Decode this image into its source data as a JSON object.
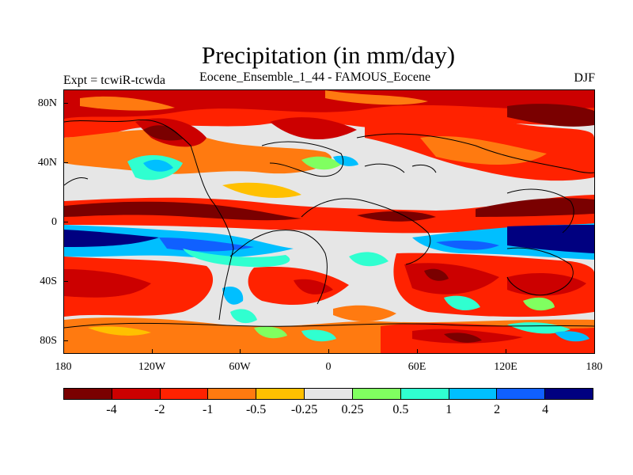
{
  "title": "Precipitation (in mm/day)",
  "subtitle": "Eocene_Ensemble_1_44 - FAMOUS_Eocene",
  "experiment": "Expt = tcwiR-tcwda",
  "season": "DJF",
  "y_tick_labels": [
    "80N",
    "40N",
    "0",
    "40S",
    "80S"
  ],
  "x_tick_labels": [
    "180",
    "120W",
    "60W",
    "0",
    "60E",
    "120E",
    "180"
  ],
  "colorbar": {
    "colors": [
      "#7a0000",
      "#cc0000",
      "#ff2200",
      "#ff7a10",
      "#ffc000",
      "#e6e6e6",
      "#80ff60",
      "#30ffd0",
      "#00bfff",
      "#1060ff",
      "#000080"
    ],
    "labels": [
      "-4",
      "-2",
      "-1",
      "-0.5",
      "-0.25",
      "0.25",
      "0.5",
      "1",
      "2",
      "4"
    ]
  }
}
